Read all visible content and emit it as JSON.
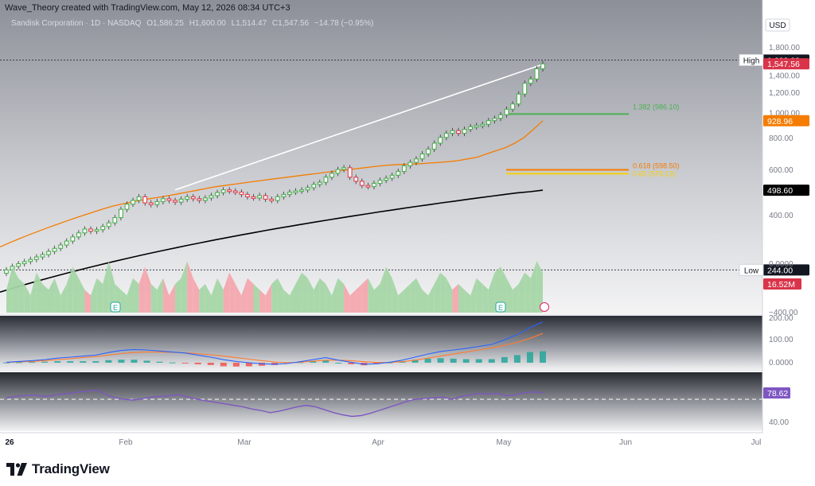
{
  "header": {
    "credit": "Wave_Theory created with TradingView.com, May 12, 2026 08:34 UTC+3",
    "symbol": "Sandisk Corporation · 1D · NASDAQ",
    "ohlc": {
      "o_label": "O",
      "o": "1,586.25",
      "h_label": "H",
      "h": "1,600.00",
      "l_label": "L",
      "l": "1,514.47",
      "c_label": "C",
      "c": "1,547.56",
      "change": "−14.78 (−0.95%)"
    }
  },
  "footer": {
    "brand": "TradingView"
  },
  "colors": {
    "up": "#4caf50",
    "down": "#e0404e",
    "ema_short": "#f57c00",
    "ema_long": "#000000",
    "macd": "#2962ff",
    "signal": "#ff7b2e",
    "rsi": "#7e57c2",
    "fib_green": "#4caf50",
    "fib_orange": "#f57c00",
    "fib_yellow": "#f5d20a"
  },
  "chart_data": [
    {
      "type": "candlestick",
      "title": "Sandisk Corporation · 1D · NASDAQ",
      "currency": "USD",
      "y_scale": "log",
      "x_ticks": [
        "26",
        "Feb",
        "Mar",
        "Apr",
        "May",
        "Jun",
        "Jul"
      ],
      "y_ticks": [
        "1,800.00",
        "1,600.00",
        "1,400.00",
        "1,200.00",
        "1,000.00",
        "800.00",
        "600.00",
        "400.00"
      ],
      "price_labels": [
        {
          "text": "High",
          "value": "1,600.00"
        },
        {
          "text": "",
          "value": "1,547.56"
        },
        {
          "text": "",
          "value": "928.96"
        },
        {
          "text": "",
          "value": "498.60"
        },
        {
          "text": "Low",
          "value": "244.00"
        }
      ],
      "series": [
        {
          "name": "Price",
          "close": [
            244,
            252,
            258,
            263,
            268,
            274,
            280,
            288,
            296,
            305,
            316,
            328,
            340,
            352,
            345,
            350,
            360,
            372,
            390,
            420,
            440,
            455,
            470,
            445,
            438,
            450,
            462,
            455,
            448,
            460,
            470,
            462,
            455,
            465,
            475,
            488,
            500,
            495,
            490,
            480,
            470,
            465,
            475,
            460,
            455,
            470,
            480,
            490,
            495,
            500,
            510,
            525,
            535,
            560,
            580,
            600,
            610,
            560,
            540,
            520,
            515,
            530,
            545,
            555,
            570,
            590,
            620,
            640,
            660,
            690,
            720,
            760,
            800,
            830,
            850,
            830,
            860,
            880,
            890,
            900,
            930,
            950,
            980,
            1030,
            1080,
            1180,
            1300,
            1350,
            1480,
            1547.56
          ]
        },
        {
          "name": "EMA short",
          "values": [
            300,
            311,
            322,
            333,
            344,
            355,
            366,
            377,
            388,
            399,
            410,
            421,
            432,
            440,
            448,
            455,
            462,
            468,
            475,
            482,
            490,
            498,
            506,
            514,
            520,
            526,
            532,
            538,
            544,
            550,
            556,
            562,
            568,
            574,
            580,
            586,
            592,
            598,
            604,
            610,
            616,
            622,
            626,
            628,
            630,
            632,
            636,
            640,
            644,
            650,
            660,
            670,
            690,
            710,
            730,
            760,
            800,
            860,
            928.96
          ]
        },
        {
          "name": "EMA long",
          "values": [
            200,
            207,
            214,
            221,
            228,
            235,
            242,
            249,
            256,
            263,
            270,
            277,
            284,
            291,
            298,
            305,
            312,
            319,
            326,
            333,
            340,
            347,
            354,
            361,
            368,
            375,
            382,
            389,
            396,
            403,
            410,
            417,
            424,
            431,
            438,
            445,
            452,
            459,
            466,
            473,
            480,
            487,
            492,
            498.6
          ]
        }
      ],
      "annotations": [
        {
          "type": "trendline",
          "from": [
            28,
            500
          ],
          "to": [
            89,
            1540
          ]
        },
        {
          "type": "fib",
          "label": "1.382 (986.10)",
          "value": 986.1
        },
        {
          "type": "fib",
          "label": "0.618 (598.50)",
          "value": 598.5
        },
        {
          "type": "fib",
          "label": "0.65 (578.13)",
          "value": 578.13
        }
      ]
    },
    {
      "type": "area",
      "title": "Volume",
      "y_ticks": [
        "0.0000",
        "−400.00"
      ],
      "last_value": "16.52M",
      "values": [
        4,
        8,
        6,
        5,
        3,
        7,
        5,
        4,
        6,
        3,
        5,
        8,
        6,
        4,
        3,
        6,
        5,
        9,
        5,
        4,
        3,
        6,
        5,
        8,
        5,
        4,
        6,
        3,
        5,
        6,
        9,
        6,
        4,
        5,
        3,
        6,
        4,
        7,
        5,
        3,
        6,
        5,
        4,
        3,
        5,
        6,
        4,
        3,
        5,
        7,
        6,
        4,
        6,
        5,
        3,
        6,
        5,
        3,
        4,
        5,
        6,
        4,
        5,
        8,
        6,
        3,
        4,
        5,
        6,
        4,
        3,
        5,
        7,
        6,
        4,
        5,
        4,
        3,
        6,
        5,
        4,
        7,
        8,
        6,
        4,
        5,
        7,
        6,
        9,
        7
      ]
    },
    {
      "type": "line",
      "title": "MACD",
      "y_ticks": [
        "200.00",
        "100.00",
        "0.0000"
      ],
      "series": [
        {
          "name": "MACD",
          "values": [
            2,
            5,
            8,
            12,
            18,
            22,
            26,
            30,
            40,
            48,
            52,
            50,
            46,
            42,
            38,
            30,
            22,
            12,
            5,
            0,
            -4,
            -6,
            -3,
            4,
            12,
            20,
            10,
            2,
            -6,
            -4,
            2,
            10,
            22,
            34,
            44,
            50,
            56,
            64,
            72,
            90,
            110,
            138,
            160
          ]
        },
        {
          "name": "Signal",
          "values": [
            1,
            3,
            5,
            8,
            12,
            16,
            20,
            24,
            30,
            36,
            40,
            42,
            42,
            41,
            39,
            36,
            31,
            26,
            20,
            14,
            8,
            3,
            0,
            2,
            6,
            10,
            10,
            8,
            4,
            1,
            1,
            4,
            10,
            18,
            26,
            34,
            42,
            50,
            58,
            68,
            80,
            96,
            115
          ]
        },
        {
          "name": "Histogram",
          "values": [
            1,
            2,
            3,
            4,
            6,
            6,
            6,
            6,
            10,
            12,
            12,
            8,
            4,
            1,
            -1,
            -6,
            -9,
            -14,
            -15,
            -14,
            -12,
            -9,
            -3,
            2,
            6,
            10,
            0,
            -6,
            -10,
            -5,
            1,
            6,
            12,
            16,
            18,
            16,
            14,
            14,
            14,
            22,
            30,
            42,
            45
          ]
        }
      ]
    },
    {
      "type": "line",
      "title": "RSI",
      "y_ticks": [
        "78.62",
        "40.00"
      ],
      "series": [
        {
          "name": "RSI",
          "values": [
            72,
            74,
            75,
            76,
            74,
            75,
            77,
            78,
            80,
            81,
            82,
            76,
            72,
            70,
            69,
            71,
            73,
            74,
            75,
            76,
            73,
            70,
            68,
            66,
            64,
            62,
            60,
            57,
            55,
            52,
            54,
            57,
            60,
            62,
            60,
            56,
            52,
            49,
            47,
            48,
            51,
            55,
            59,
            63,
            67,
            70,
            71,
            72,
            73,
            70,
            74,
            76,
            78,
            77,
            78,
            75,
            76,
            79,
            80,
            78.62
          ]
        },
        {
          "name": "Midline",
          "values": [
            70
          ]
        }
      ]
    }
  ]
}
